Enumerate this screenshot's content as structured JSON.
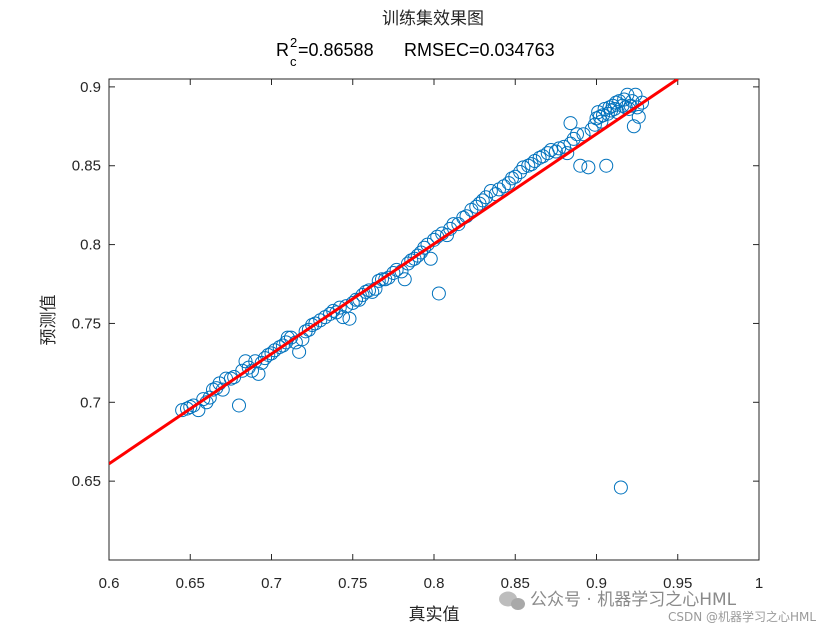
{
  "chart_data": {
    "type": "scatter",
    "title": "训练集效果图",
    "metrics": {
      "r_letter": "R",
      "r_sup": "2",
      "r_sub": "c",
      "r2_text": "=0.86588",
      "rmse_text": "RMSEC=0.034763"
    },
    "xlabel": "真实值",
    "ylabel": "预测值",
    "xlim": [
      0.6,
      1.0
    ],
    "ylim": [
      0.6,
      0.905
    ],
    "xticks": [
      0.6,
      0.65,
      0.7,
      0.75,
      0.8,
      0.85,
      0.9,
      0.95,
      1.0
    ],
    "xtick_labels": [
      "0.6",
      "0.65",
      "0.7",
      "0.75",
      "0.8",
      "0.85",
      "0.9",
      "0.95",
      "1"
    ],
    "yticks": [
      0.65,
      0.7,
      0.75,
      0.8,
      0.85,
      0.9
    ],
    "ytick_labels": [
      "0.65",
      "0.7",
      "0.75",
      "0.8",
      "0.85",
      "0.9"
    ],
    "grid": false,
    "marker": "circle",
    "colors": {
      "points": "#0072BD",
      "fit_line": "#FF0000",
      "axes": "#262626"
    },
    "fit_line": {
      "x": [
        0.6,
        0.95
      ],
      "y": [
        0.661,
        0.905
      ]
    },
    "points": [
      [
        0.645,
        0.695
      ],
      [
        0.648,
        0.696
      ],
      [
        0.65,
        0.697
      ],
      [
        0.652,
        0.698
      ],
      [
        0.655,
        0.695
      ],
      [
        0.658,
        0.702
      ],
      [
        0.66,
        0.7
      ],
      [
        0.662,
        0.703
      ],
      [
        0.664,
        0.708
      ],
      [
        0.666,
        0.709
      ],
      [
        0.668,
        0.712
      ],
      [
        0.67,
        0.708
      ],
      [
        0.672,
        0.715
      ],
      [
        0.675,
        0.715
      ],
      [
        0.677,
        0.716
      ],
      [
        0.68,
        0.698
      ],
      [
        0.682,
        0.72
      ],
      [
        0.684,
        0.726
      ],
      [
        0.686,
        0.722
      ],
      [
        0.688,
        0.72
      ],
      [
        0.69,
        0.726
      ],
      [
        0.692,
        0.718
      ],
      [
        0.694,
        0.725
      ],
      [
        0.696,
        0.728
      ],
      [
        0.698,
        0.73
      ],
      [
        0.7,
        0.731
      ],
      [
        0.702,
        0.733
      ],
      [
        0.705,
        0.735
      ],
      [
        0.707,
        0.736
      ],
      [
        0.709,
        0.738
      ],
      [
        0.71,
        0.741
      ],
      [
        0.712,
        0.741
      ],
      [
        0.715,
        0.738
      ],
      [
        0.717,
        0.732
      ],
      [
        0.719,
        0.74
      ],
      [
        0.721,
        0.745
      ],
      [
        0.723,
        0.746
      ],
      [
        0.725,
        0.749
      ],
      [
        0.727,
        0.75
      ],
      [
        0.73,
        0.752
      ],
      [
        0.733,
        0.754
      ],
      [
        0.736,
        0.756
      ],
      [
        0.738,
        0.758
      ],
      [
        0.74,
        0.757
      ],
      [
        0.742,
        0.76
      ],
      [
        0.744,
        0.754
      ],
      [
        0.746,
        0.761
      ],
      [
        0.748,
        0.753
      ],
      [
        0.75,
        0.763
      ],
      [
        0.752,
        0.765
      ],
      [
        0.754,
        0.765
      ],
      [
        0.756,
        0.768
      ],
      [
        0.758,
        0.77
      ],
      [
        0.76,
        0.771
      ],
      [
        0.762,
        0.77
      ],
      [
        0.764,
        0.772
      ],
      [
        0.766,
        0.777
      ],
      [
        0.768,
        0.778
      ],
      [
        0.77,
        0.778
      ],
      [
        0.772,
        0.779
      ],
      [
        0.775,
        0.782
      ],
      [
        0.777,
        0.784
      ],
      [
        0.78,
        0.783
      ],
      [
        0.782,
        0.778
      ],
      [
        0.784,
        0.788
      ],
      [
        0.786,
        0.79
      ],
      [
        0.788,
        0.791
      ],
      [
        0.79,
        0.793
      ],
      [
        0.792,
        0.795
      ],
      [
        0.794,
        0.798
      ],
      [
        0.796,
        0.8
      ],
      [
        0.798,
        0.791
      ],
      [
        0.8,
        0.803
      ],
      [
        0.802,
        0.805
      ],
      [
        0.803,
        0.769
      ],
      [
        0.805,
        0.807
      ],
      [
        0.808,
        0.806
      ],
      [
        0.81,
        0.81
      ],
      [
        0.812,
        0.813
      ],
      [
        0.815,
        0.813
      ],
      [
        0.818,
        0.817
      ],
      [
        0.82,
        0.818
      ],
      [
        0.823,
        0.822
      ],
      [
        0.826,
        0.824
      ],
      [
        0.828,
        0.826
      ],
      [
        0.83,
        0.828
      ],
      [
        0.832,
        0.83
      ],
      [
        0.835,
        0.834
      ],
      [
        0.838,
        0.832
      ],
      [
        0.84,
        0.835
      ],
      [
        0.843,
        0.837
      ],
      [
        0.846,
        0.839
      ],
      [
        0.848,
        0.842
      ],
      [
        0.85,
        0.843
      ],
      [
        0.853,
        0.846
      ],
      [
        0.855,
        0.849
      ],
      [
        0.858,
        0.85
      ],
      [
        0.86,
        0.851
      ],
      [
        0.862,
        0.853
      ],
      [
        0.865,
        0.855
      ],
      [
        0.867,
        0.856
      ],
      [
        0.87,
        0.858
      ],
      [
        0.872,
        0.86
      ],
      [
        0.875,
        0.859
      ],
      [
        0.877,
        0.861
      ],
      [
        0.88,
        0.862
      ],
      [
        0.882,
        0.858
      ],
      [
        0.884,
        0.864
      ],
      [
        0.884,
        0.877
      ],
      [
        0.886,
        0.867
      ],
      [
        0.888,
        0.87
      ],
      [
        0.89,
        0.85
      ],
      [
        0.892,
        0.87
      ],
      [
        0.895,
        0.849
      ],
      [
        0.897,
        0.873
      ],
      [
        0.899,
        0.876
      ],
      [
        0.9,
        0.88
      ],
      [
        0.901,
        0.884
      ],
      [
        0.902,
        0.881
      ],
      [
        0.903,
        0.878
      ],
      [
        0.904,
        0.882
      ],
      [
        0.905,
        0.886
      ],
      [
        0.906,
        0.85
      ],
      [
        0.907,
        0.883
      ],
      [
        0.908,
        0.887
      ],
      [
        0.909,
        0.885
      ],
      [
        0.91,
        0.888
      ],
      [
        0.911,
        0.886
      ],
      [
        0.912,
        0.89
      ],
      [
        0.913,
        0.884
      ],
      [
        0.914,
        0.891
      ],
      [
        0.915,
        0.646
      ],
      [
        0.916,
        0.888
      ],
      [
        0.917,
        0.892
      ],
      [
        0.918,
        0.887
      ],
      [
        0.919,
        0.895
      ],
      [
        0.92,
        0.886
      ],
      [
        0.921,
        0.888
      ],
      [
        0.922,
        0.891
      ],
      [
        0.923,
        0.875
      ],
      [
        0.924,
        0.895
      ],
      [
        0.925,
        0.887
      ],
      [
        0.926,
        0.881
      ],
      [
        0.928,
        0.89
      ]
    ]
  },
  "watermark": {
    "line1": "公众号 · 机器学习之心HML",
    "line2": "CSDN @机器学习之心HML"
  }
}
